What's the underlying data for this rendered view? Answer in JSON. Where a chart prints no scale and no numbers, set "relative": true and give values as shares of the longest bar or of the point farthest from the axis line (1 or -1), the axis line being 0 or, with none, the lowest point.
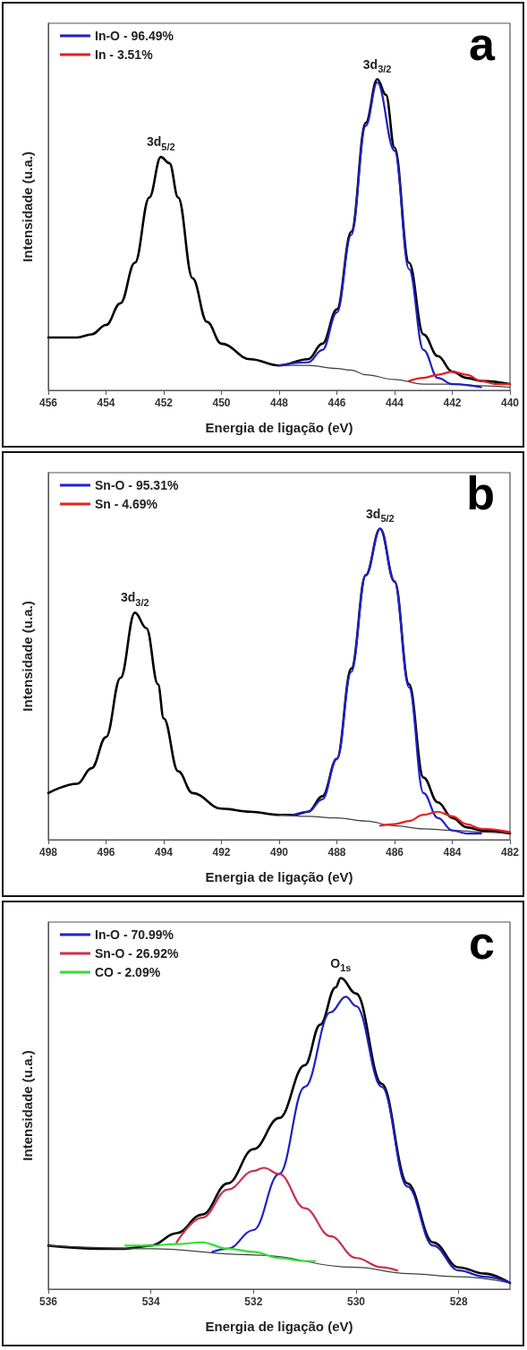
{
  "chart_data": [
    {
      "type": "line",
      "title": "a",
      "xlabel": "Energia de ligação (eV)",
      "ylabel": "Intensidade (u.a.)",
      "relative": true,
      "legend": "top left",
      "xlim": [
        456,
        440
      ],
      "xticks": [
        456,
        454,
        452,
        450,
        448,
        446,
        444,
        442,
        440
      ],
      "annotations": [
        {
          "text": "3d$_{5/2}$",
          "x": 452.1,
          "y": 0.75
        },
        {
          "text": "3d$_{3/2}$",
          "x": 444.6,
          "y": 1.0
        }
      ],
      "series": [
        {
          "color": "#000000",
          "x": [
            456,
            455,
            454.5,
            454,
            453.5,
            453,
            452.5,
            452.1,
            451.8,
            451.5,
            451,
            450.5,
            450,
            449,
            448,
            447,
            446.5,
            446,
            445.5,
            445,
            444.6,
            444.3,
            444,
            443.5,
            443,
            442.5,
            442,
            441.5,
            441,
            440
          ],
          "values": [
            0.17,
            0.17,
            0.18,
            0.21,
            0.28,
            0.41,
            0.62,
            0.75,
            0.73,
            0.62,
            0.36,
            0.22,
            0.15,
            0.1,
            0.08,
            0.1,
            0.15,
            0.26,
            0.51,
            0.86,
            1.0,
            0.95,
            0.78,
            0.41,
            0.18,
            0.11,
            0.06,
            0.04,
            0.03,
            0.02
          ]
        },
        {
          "color": "#404040",
          "x": [
            448,
            447,
            446,
            445.5,
            445,
            444,
            443,
            442,
            441,
            440
          ],
          "values": [
            0.08,
            0.08,
            0.07,
            0.065,
            0.05,
            0.035,
            0.02,
            0.02,
            0.015,
            0.01
          ]
        },
        {
          "name": "In-O - 96.49%",
          "color": "#2020c0",
          "x": [
            448,
            447,
            446.5,
            446,
            445.5,
            445,
            444.6,
            444,
            443.5,
            443,
            442.5,
            442,
            441
          ],
          "values": [
            0.08,
            0.09,
            0.13,
            0.25,
            0.5,
            0.85,
            0.99,
            0.77,
            0.39,
            0.13,
            0.04,
            0.02,
            0.01
          ]
        },
        {
          "name": "In - 3.51%",
          "color": "#e02020",
          "x": [
            443.5,
            443,
            442.5,
            442,
            441.5,
            441,
            440.5,
            440
          ],
          "values": [
            0.03,
            0.04,
            0.05,
            0.06,
            0.05,
            0.03,
            0.02,
            0.02
          ]
        }
      ]
    },
    {
      "type": "line",
      "title": "b",
      "xlabel": "Energia de ligação (eV)",
      "ylabel": "Intensidade (u.a.)",
      "relative": true,
      "legend": "top left",
      "xlim": [
        498,
        482
      ],
      "xticks": [
        498,
        496,
        494,
        492,
        490,
        488,
        486,
        484,
        482
      ],
      "annotations": [
        {
          "text": "3d$_{3/2}$",
          "x": 495,
          "y": 0.73
        },
        {
          "text": "3d$_{5/2}$",
          "x": 486.5,
          "y": 1.0
        }
      ],
      "series": [
        {
          "color": "#000000",
          "x": [
            498,
            497,
            496.5,
            496,
            495.5,
            495,
            494.6,
            494.2,
            494,
            493.5,
            493,
            492,
            491,
            490,
            489.5,
            489,
            488.5,
            488,
            487.5,
            487,
            486.5,
            486,
            485.5,
            485,
            484.5,
            484,
            483.5,
            483,
            482
          ],
          "values": [
            0.15,
            0.18,
            0.23,
            0.33,
            0.52,
            0.73,
            0.68,
            0.5,
            0.39,
            0.22,
            0.15,
            0.1,
            0.09,
            0.08,
            0.08,
            0.09,
            0.14,
            0.26,
            0.55,
            0.85,
            1.0,
            0.83,
            0.5,
            0.2,
            0.12,
            0.07,
            0.04,
            0.03,
            0.02
          ]
        },
        {
          "color": "#404040",
          "x": [
            490,
            489,
            488,
            487,
            486,
            485,
            484,
            483,
            482
          ],
          "values": [
            0.08,
            0.075,
            0.07,
            0.06,
            0.045,
            0.035,
            0.03,
            0.025,
            0.02
          ]
        },
        {
          "name": "Sn-O - 95.31%",
          "color": "#2020d0",
          "x": [
            489.5,
            489,
            488.5,
            488,
            487.5,
            487,
            486.5,
            486,
            485.5,
            485,
            484.5,
            484,
            483.5,
            483
          ],
          "values": [
            0.08,
            0.09,
            0.13,
            0.26,
            0.54,
            0.85,
            1.0,
            0.83,
            0.49,
            0.15,
            0.07,
            0.03,
            0.02,
            0.02
          ]
        },
        {
          "name": "Sn - 4.69%",
          "color": "#e82020",
          "x": [
            486.5,
            486,
            485.5,
            485,
            484.5,
            484,
            483.5,
            483,
            482
          ],
          "values": [
            0.045,
            0.05,
            0.06,
            0.08,
            0.09,
            0.075,
            0.05,
            0.035,
            0.025
          ]
        }
      ]
    },
    {
      "type": "line",
      "title": "c",
      "xlabel": "Energia de ligação (eV)",
      "ylabel": "Intensidade (u.a.)",
      "relative": true,
      "legend": "top left",
      "xlim": [
        536,
        527
      ],
      "xticks": [
        536,
        534,
        532,
        530,
        528
      ],
      "annotations": [
        {
          "text": "O$_{1s}$",
          "x": 530.3,
          "y": 1.0
        }
      ],
      "series": [
        {
          "color": "#000000",
          "x": [
            536,
            535,
            534.5,
            534,
            533.5,
            533,
            532.5,
            532,
            531.5,
            531,
            530.7,
            530.4,
            530.3,
            530,
            529.5,
            529,
            528.5,
            528,
            527.5,
            527
          ],
          "values": [
            0.14,
            0.13,
            0.13,
            0.14,
            0.18,
            0.24,
            0.34,
            0.45,
            0.55,
            0.72,
            0.85,
            0.97,
            1.0,
            0.95,
            0.66,
            0.34,
            0.15,
            0.07,
            0.05,
            0.02
          ]
        },
        {
          "color": "#404040",
          "x": [
            536,
            534,
            532,
            530,
            529,
            528,
            527
          ],
          "values": [
            0.14,
            0.13,
            0.11,
            0.07,
            0.05,
            0.04,
            0.02
          ]
        },
        {
          "name": "In-O - 70.99%",
          "color": "#2020c0",
          "x": [
            532.8,
            532.5,
            532,
            531.5,
            531,
            530.5,
            530.2,
            530,
            529.5,
            529,
            528.5,
            528,
            527.5,
            527
          ],
          "values": [
            0.12,
            0.13,
            0.19,
            0.37,
            0.65,
            0.89,
            0.94,
            0.91,
            0.65,
            0.33,
            0.14,
            0.06,
            0.04,
            0.02
          ]
        },
        {
          "name": "Sn-O - 26.92%",
          "color": "#c8304a",
          "x": [
            533.5,
            533,
            532.5,
            532,
            531.8,
            531.5,
            531,
            530.5,
            530,
            529.5,
            529.2
          ],
          "values": [
            0.15,
            0.23,
            0.32,
            0.38,
            0.39,
            0.37,
            0.26,
            0.17,
            0.1,
            0.07,
            0.06
          ]
        },
        {
          "name": "CO - 2.09%",
          "color": "#30e030",
          "x": [
            534.5,
            534,
            533.5,
            533,
            532.5,
            532,
            531.5,
            531,
            530.8
          ],
          "values": [
            0.14,
            0.14,
            0.145,
            0.15,
            0.13,
            0.12,
            0.1,
            0.09,
            0.09
          ]
        }
      ]
    }
  ]
}
